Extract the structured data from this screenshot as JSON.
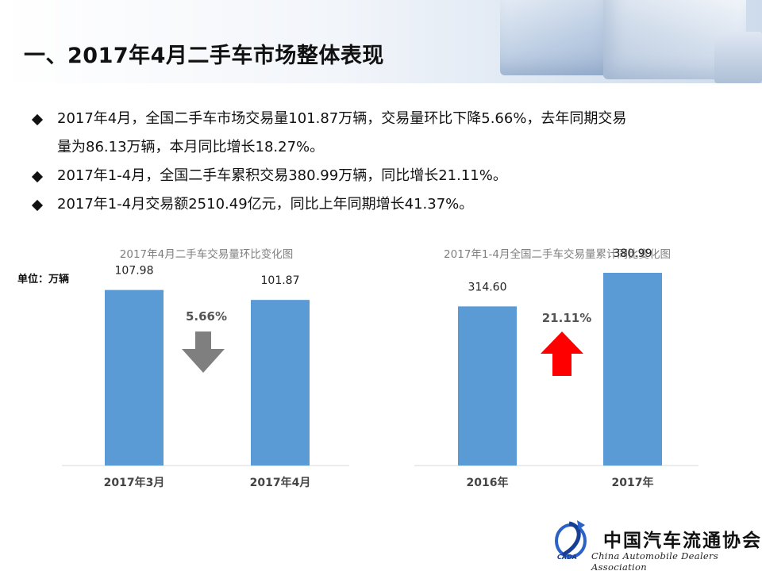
{
  "page": {
    "title": "一、2017年4月二手车市场整体表现",
    "bullets": [
      "2017年4月，全国二手车市场交易量101.87万辆，交易量环比下降5.66%，去年同期交易",
      "量为86.13万辆，本月同比增长18.27%。",
      "2017年1-4月，全国二手车累积交易380.99万辆，同比增长21.11%。",
      "2017年1-4月交易额2510.49亿元，同比上年同期增长41.37%。"
    ],
    "unit_label": "单位：万辆"
  },
  "colors": {
    "bar": "#5b9bd5",
    "down_arrow": "#7f7f7f",
    "up_arrow": "#ff0000",
    "axis": "#d9d9d9"
  },
  "chart_data": [
    {
      "type": "bar",
      "title": "2017年4月二手车交易量环比变化图",
      "categories": [
        "2017年3月",
        "2017年4月"
      ],
      "values": [
        107.98,
        101.87
      ],
      "value_labels": [
        "107.98",
        "101.87"
      ],
      "change": {
        "label": "5.66%",
        "direction": "down",
        "icon": "down-arrow-icon"
      },
      "ylim": [
        0,
        140
      ]
    },
    {
      "type": "bar",
      "title": "2017年1-4月全国二手车交易量累计同比变化图",
      "categories": [
        "2016年",
        "2017年"
      ],
      "values": [
        314.6,
        380.99
      ],
      "value_labels": [
        "314.60",
        "380.99"
      ],
      "change": {
        "label": "21.11%",
        "direction": "up",
        "icon": "up-arrow-icon"
      },
      "ylim": [
        0,
        450
      ]
    }
  ],
  "footer": {
    "org_cn": "中国汽车流通协会",
    "org_en": "China Automobile Dealers Association",
    "logo_text": "CADA"
  }
}
